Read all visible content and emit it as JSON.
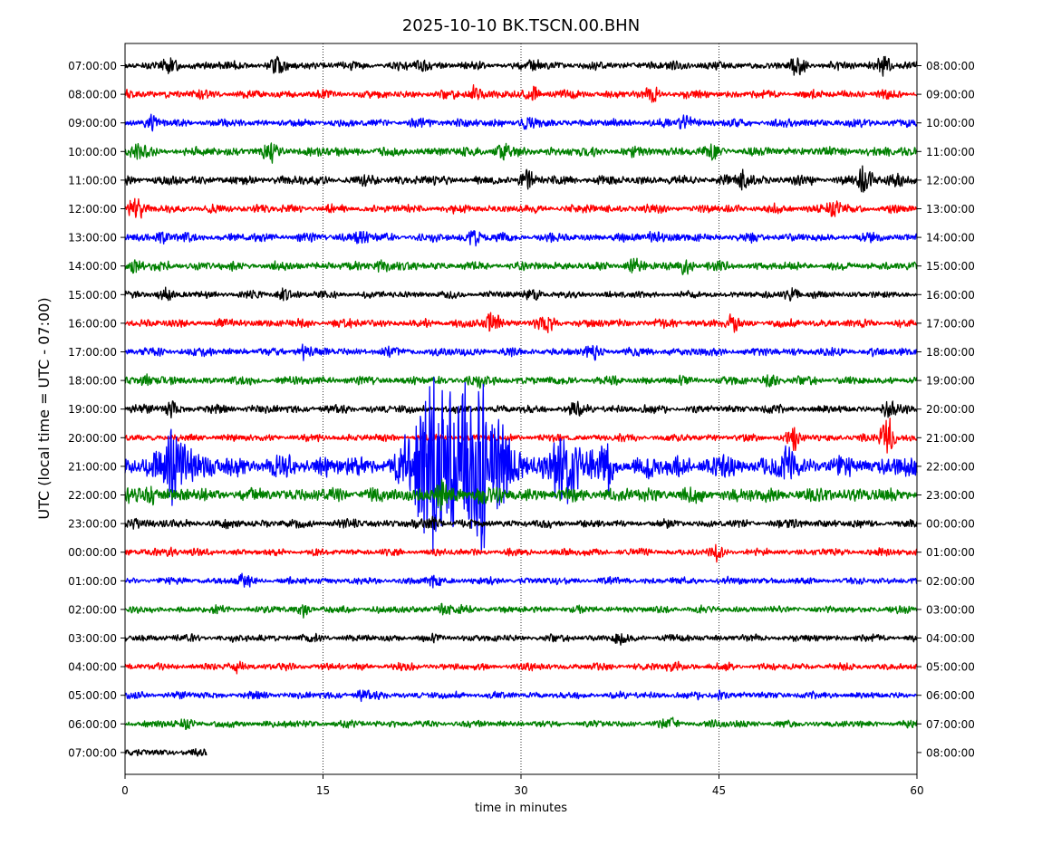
{
  "chart_data": {
    "type": "line",
    "title": "2025-10-10 BK.TSCN.00.BHN",
    "xlabel": "time in minutes",
    "ylabel": "UTC (local time = UTC - 07:00)",
    "xlim": [
      0,
      60
    ],
    "x_ticks": [
      0,
      15,
      30,
      45,
      60
    ],
    "x_gridlines": [
      15,
      30,
      45
    ],
    "grid": "vertical dotted lines at 15, 30, 45 minutes",
    "left_tick_labels": [
      "07:00:00",
      "08:00:00",
      "09:00:00",
      "10:00:00",
      "11:00:00",
      "12:00:00",
      "13:00:00",
      "14:00:00",
      "15:00:00",
      "16:00:00",
      "17:00:00",
      "18:00:00",
      "19:00:00",
      "20:00:00",
      "21:00:00",
      "22:00:00",
      "23:00:00",
      "00:00:00",
      "01:00:00",
      "02:00:00",
      "03:00:00",
      "04:00:00",
      "05:00:00",
      "06:00:00",
      "07:00:00"
    ],
    "right_tick_labels": [
      "08:00:00",
      "09:00:00",
      "10:00:00",
      "11:00:00",
      "12:00:00",
      "13:00:00",
      "14:00:00",
      "15:00:00",
      "16:00:00",
      "17:00:00",
      "18:00:00",
      "19:00:00",
      "20:00:00",
      "21:00:00",
      "22:00:00",
      "23:00:00",
      "00:00:00",
      "01:00:00",
      "02:00:00",
      "03:00:00",
      "04:00:00",
      "05:00:00",
      "06:00:00",
      "07:00:00",
      "08:00:00"
    ],
    "color_cycle": [
      "#000000",
      "#ff0000",
      "#0000ff",
      "#008000"
    ],
    "traces": [
      {
        "utc": "07:00:00",
        "color": "#000000",
        "duration_min": 60,
        "amplitude": 0.35,
        "events": [
          {
            "t": 3.5,
            "a": 0.6
          },
          {
            "t": 11.5,
            "a": 0.55
          },
          {
            "t": 22.5,
            "a": 0.5
          },
          {
            "t": 31.0,
            "a": 0.55
          },
          {
            "t": 51.0,
            "a": 0.7
          },
          {
            "t": 57.5,
            "a": 0.75
          }
        ]
      },
      {
        "utc": "08:00:00",
        "color": "#ff0000",
        "duration_min": 60,
        "amplitude": 0.35,
        "events": [
          {
            "t": 26.5,
            "a": 0.65
          },
          {
            "t": 31.0,
            "a": 0.6
          },
          {
            "t": 40.0,
            "a": 0.55
          }
        ]
      },
      {
        "utc": "09:00:00",
        "color": "#0000ff",
        "duration_min": 60,
        "amplitude": 0.35,
        "events": [
          {
            "t": 2.0,
            "a": 0.5
          },
          {
            "t": 30.5,
            "a": 0.6
          },
          {
            "t": 42.5,
            "a": 0.6
          }
        ]
      },
      {
        "utc": "10:00:00",
        "color": "#008000",
        "duration_min": 60,
        "amplitude": 0.4,
        "events": [
          {
            "t": 0.8,
            "a": 0.55
          },
          {
            "t": 11.0,
            "a": 0.6
          },
          {
            "t": 28.5,
            "a": 0.65
          },
          {
            "t": 44.5,
            "a": 0.55
          }
        ]
      },
      {
        "utc": "11:00:00",
        "color": "#000000",
        "duration_min": 60,
        "amplitude": 0.4,
        "events": [
          {
            "t": 30.5,
            "a": 0.75
          },
          {
            "t": 47.0,
            "a": 0.7
          },
          {
            "t": 56.0,
            "a": 1.05
          },
          {
            "t": 58.5,
            "a": 0.7
          }
        ]
      },
      {
        "utc": "12:00:00",
        "color": "#ff0000",
        "duration_min": 60,
        "amplitude": 0.35,
        "events": [
          {
            "t": 0.8,
            "a": 0.9
          },
          {
            "t": 53.8,
            "a": 0.8
          }
        ]
      },
      {
        "utc": "13:00:00",
        "color": "#0000ff",
        "duration_min": 60,
        "amplitude": 0.35,
        "events": [
          {
            "t": 2.8,
            "a": 0.55
          },
          {
            "t": 17.8,
            "a": 0.6
          },
          {
            "t": 26.5,
            "a": 0.55
          },
          {
            "t": 40.0,
            "a": 0.5
          }
        ]
      },
      {
        "utc": "14:00:00",
        "color": "#008000",
        "duration_min": 60,
        "amplitude": 0.35,
        "events": [
          {
            "t": 0.8,
            "a": 0.65
          },
          {
            "t": 19.5,
            "a": 0.7
          },
          {
            "t": 38.5,
            "a": 0.55
          },
          {
            "t": 42.5,
            "a": 0.7
          }
        ]
      },
      {
        "utc": "15:00:00",
        "color": "#000000",
        "duration_min": 60,
        "amplitude": 0.3,
        "events": [
          {
            "t": 3.0,
            "a": 0.55
          },
          {
            "t": 12.0,
            "a": 0.55
          },
          {
            "t": 31.0,
            "a": 0.55
          },
          {
            "t": 50.5,
            "a": 0.6
          }
        ]
      },
      {
        "utc": "16:00:00",
        "color": "#ff0000",
        "duration_min": 60,
        "amplitude": 0.35,
        "events": [
          {
            "t": 27.8,
            "a": 0.9
          },
          {
            "t": 32.0,
            "a": 0.55
          },
          {
            "t": 46.0,
            "a": 0.5
          }
        ]
      },
      {
        "utc": "17:00:00",
        "color": "#0000ff",
        "duration_min": 60,
        "amplitude": 0.35,
        "events": [
          {
            "t": 13.5,
            "a": 0.5
          },
          {
            "t": 35.5,
            "a": 0.55
          }
        ]
      },
      {
        "utc": "18:00:00",
        "color": "#008000",
        "duration_min": 60,
        "amplitude": 0.35,
        "events": [
          {
            "t": 1.5,
            "a": 0.55
          },
          {
            "t": 26.5,
            "a": 0.5
          },
          {
            "t": 49.0,
            "a": 0.5
          }
        ]
      },
      {
        "utc": "19:00:00",
        "color": "#000000",
        "duration_min": 60,
        "amplitude": 0.35,
        "events": [
          {
            "t": 3.5,
            "a": 0.55
          },
          {
            "t": 34.0,
            "a": 0.55
          },
          {
            "t": 57.8,
            "a": 0.6
          }
        ]
      },
      {
        "utc": "20:00:00",
        "color": "#ff0000",
        "duration_min": 60,
        "amplitude": 0.3,
        "events": [
          {
            "t": 50.5,
            "a": 0.9
          },
          {
            "t": 57.8,
            "a": 1.8
          }
        ]
      },
      {
        "utc": "21:00:00",
        "color": "#0000ff",
        "duration_min": 60,
        "amplitude": 0.9,
        "events": [
          {
            "t": 3.8,
            "a": 2.3
          },
          {
            "t": 22.5,
            "a": 5.0
          },
          {
            "t": 24.0,
            "a": 5.4
          },
          {
            "t": 26.0,
            "a": 5.2
          },
          {
            "t": 27.8,
            "a": 5.3
          },
          {
            "t": 33.5,
            "a": 2.5
          },
          {
            "t": 36.5,
            "a": 2.0
          },
          {
            "t": 50.0,
            "a": 1.3
          }
        ]
      },
      {
        "utc": "22:00:00",
        "color": "#008000",
        "duration_min": 60,
        "amplitude": 0.6,
        "events": [
          {
            "t": 2.0,
            "a": 0.8
          },
          {
            "t": 24.0,
            "a": 1.0
          },
          {
            "t": 27.0,
            "a": 1.0
          }
        ]
      },
      {
        "utc": "23:00:00",
        "color": "#000000",
        "duration_min": 60,
        "amplitude": 0.35,
        "events": [
          {
            "t": 0.5,
            "a": 0.55
          },
          {
            "t": 23.5,
            "a": 0.6
          }
        ]
      },
      {
        "utc": "00:00:00",
        "color": "#ff0000",
        "duration_min": 60,
        "amplitude": 0.3,
        "events": [
          {
            "t": 3.5,
            "a": 0.45
          },
          {
            "t": 45.0,
            "a": 0.5
          }
        ]
      },
      {
        "utc": "01:00:00",
        "color": "#0000ff",
        "duration_min": 60,
        "amplitude": 0.3,
        "events": [
          {
            "t": 9.0,
            "a": 0.45
          },
          {
            "t": 23.5,
            "a": 0.5
          }
        ]
      },
      {
        "utc": "02:00:00",
        "color": "#008000",
        "duration_min": 60,
        "amplitude": 0.3,
        "events": [
          {
            "t": 13.5,
            "a": 0.45
          },
          {
            "t": 24.0,
            "a": 0.5
          }
        ]
      },
      {
        "utc": "03:00:00",
        "color": "#000000",
        "duration_min": 60,
        "amplitude": 0.3,
        "events": [
          {
            "t": 37.5,
            "a": 0.45
          }
        ]
      },
      {
        "utc": "04:00:00",
        "color": "#ff0000",
        "duration_min": 60,
        "amplitude": 0.3,
        "events": [
          {
            "t": 8.5,
            "a": 0.45
          },
          {
            "t": 41.5,
            "a": 0.45
          }
        ]
      },
      {
        "utc": "05:00:00",
        "color": "#0000ff",
        "duration_min": 60,
        "amplitude": 0.3,
        "events": [
          {
            "t": 18.0,
            "a": 0.45
          },
          {
            "t": 45.0,
            "a": 0.4
          }
        ]
      },
      {
        "utc": "06:00:00",
        "color": "#008000",
        "duration_min": 60,
        "amplitude": 0.3,
        "events": [
          {
            "t": 4.8,
            "a": 0.4
          },
          {
            "t": 41.5,
            "a": 0.4
          }
        ]
      },
      {
        "utc": "07:00:00",
        "color": "#000000",
        "duration_min": 6.2,
        "amplitude": 0.3,
        "events": []
      }
    ]
  }
}
